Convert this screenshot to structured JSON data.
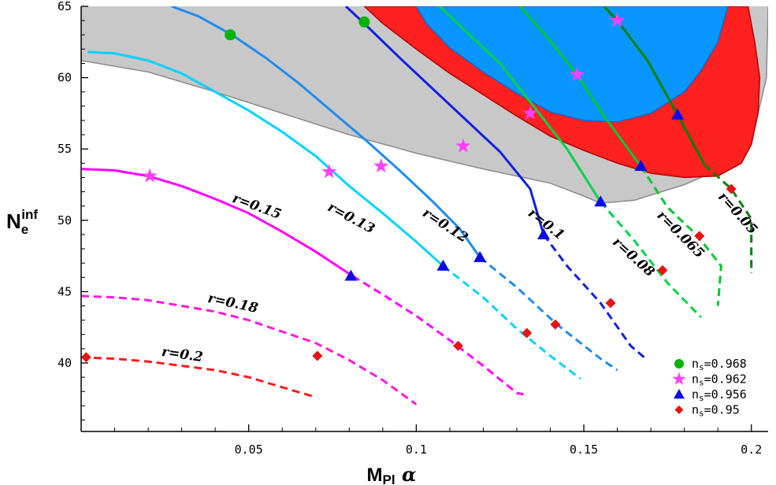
{
  "chart_data": {
    "type": "line",
    "xlabel": "M_Pl α",
    "xlabel_main": "M",
    "xlabel_sub": "Pl",
    "xlabel_greek": "α",
    "ylabel": "N_e^inf",
    "ylabel_main": "N",
    "ylabel_sub": "e",
    "ylabel_sup": "inf",
    "xlim": [
      0.0,
      0.205
    ],
    "ylim": [
      35.2,
      65.0
    ],
    "x_ticks": [
      0.05,
      0.1,
      0.15,
      0.2
    ],
    "x_tick_labels": [
      "0.05",
      "0.1",
      "0.15",
      "0.2"
    ],
    "y_ticks": [
      40,
      45,
      50,
      55,
      60,
      65
    ],
    "y_tick_labels": [
      "40",
      "45",
      "50",
      "55",
      "60",
      "65"
    ],
    "grid": false,
    "legend_position": "bottom-right",
    "regions": [
      {
        "name": "gray region",
        "color": "#c8c8c8",
        "boundary": [
          [
            0.0,
            61.2
          ],
          [
            0.02,
            60.4
          ],
          [
            0.04,
            59.0
          ],
          [
            0.06,
            57.5
          ],
          [
            0.08,
            56.0
          ],
          [
            0.1,
            54.7
          ],
          [
            0.12,
            53.6
          ],
          [
            0.14,
            52.6
          ],
          [
            0.15,
            51.7
          ],
          [
            0.155,
            51.2
          ],
          [
            0.165,
            51.4
          ],
          [
            0.18,
            52.5
          ],
          [
            0.19,
            53.5
          ],
          [
            0.2,
            55.5
          ],
          [
            0.2045,
            60.0
          ],
          [
            0.205,
            65.0
          ]
        ]
      },
      {
        "name": "red region",
        "color": "#ff2020",
        "boundary": [
          [
            0.0845,
            65.0
          ],
          [
            0.09,
            63.8
          ],
          [
            0.1,
            62.0
          ],
          [
            0.11,
            60.3
          ],
          [
            0.12,
            58.8
          ],
          [
            0.13,
            57.3
          ],
          [
            0.14,
            55.9
          ],
          [
            0.15,
            54.9
          ],
          [
            0.16,
            54.0
          ],
          [
            0.17,
            53.3
          ],
          [
            0.18,
            53.0
          ],
          [
            0.19,
            53.1
          ],
          [
            0.197,
            54.0
          ],
          [
            0.2,
            55.3
          ],
          [
            0.202,
            57.5
          ],
          [
            0.2025,
            60.0
          ],
          [
            0.201,
            62.5
          ],
          [
            0.199,
            65.0
          ]
        ]
      },
      {
        "name": "blue region",
        "color": "#0a96ff",
        "boundary": [
          [
            0.1,
            65.0
          ],
          [
            0.103,
            63.8
          ],
          [
            0.11,
            62.1
          ],
          [
            0.12,
            60.4
          ],
          [
            0.13,
            58.9
          ],
          [
            0.14,
            57.6
          ],
          [
            0.15,
            57.0
          ],
          [
            0.16,
            56.9
          ],
          [
            0.17,
            57.5
          ],
          [
            0.18,
            59.0
          ],
          [
            0.185,
            60.5
          ],
          [
            0.19,
            62.5
          ],
          [
            0.193,
            65.0
          ]
        ]
      }
    ],
    "series": [
      {
        "label": "r=0.2",
        "color": "#ff1a1a",
        "solid": [],
        "dashed": [
          [
            0.0,
            40.4
          ],
          [
            0.01,
            40.3
          ],
          [
            0.02,
            40.1
          ],
          [
            0.03,
            39.8
          ],
          [
            0.04,
            39.5
          ],
          [
            0.05,
            39.0
          ],
          [
            0.06,
            38.3
          ],
          [
            0.07,
            37.6
          ]
        ],
        "label_at": [
          0.03,
          40.3
        ],
        "label_rotation": 8
      },
      {
        "label": "r=0.18",
        "color": "#ff1ad9",
        "solid": [],
        "dashed": [
          [
            0.0,
            44.7
          ],
          [
            0.01,
            44.6
          ],
          [
            0.02,
            44.4
          ],
          [
            0.03,
            44.0
          ],
          [
            0.04,
            43.6
          ],
          [
            0.05,
            43.0
          ],
          [
            0.06,
            42.2
          ],
          [
            0.07,
            41.4
          ],
          [
            0.08,
            40.2
          ],
          [
            0.09,
            38.8
          ],
          [
            0.1,
            37.1
          ]
        ],
        "label_at": [
          0.045,
          43.9
        ],
        "label_rotation": 12
      },
      {
        "label": "r=0.15",
        "color": "#ff00ff",
        "solid": [
          [
            0.0,
            53.6
          ],
          [
            0.01,
            53.5
          ],
          [
            0.02,
            53.1
          ],
          [
            0.03,
            52.4
          ],
          [
            0.04,
            51.5
          ],
          [
            0.05,
            50.5
          ],
          [
            0.06,
            49.2
          ],
          [
            0.07,
            47.8
          ],
          [
            0.081,
            46.1
          ]
        ],
        "dashed": [
          [
            0.081,
            46.1
          ],
          [
            0.09,
            44.8
          ],
          [
            0.1,
            43.3
          ],
          [
            0.11,
            41.6
          ],
          [
            0.12,
            39.8
          ],
          [
            0.13,
            37.9
          ],
          [
            0.132,
            37.8
          ]
        ],
        "label_at": [
          0.052,
          50.7
        ],
        "label_rotation": 20
      },
      {
        "label": "r=0.13",
        "color": "#00d2ff",
        "solid": [
          [
            0.002,
            61.8
          ],
          [
            0.01,
            61.7
          ],
          [
            0.02,
            61.2
          ],
          [
            0.03,
            60.3
          ],
          [
            0.04,
            59.0
          ],
          [
            0.05,
            57.7
          ],
          [
            0.06,
            56.2
          ],
          [
            0.07,
            54.5
          ],
          [
            0.08,
            52.4
          ],
          [
            0.09,
            50.5
          ],
          [
            0.1,
            48.5
          ],
          [
            0.108,
            46.8
          ]
        ],
        "dashed": [
          [
            0.108,
            46.8
          ],
          [
            0.12,
            44.6
          ],
          [
            0.13,
            42.4
          ],
          [
            0.14,
            40.5
          ],
          [
            0.149,
            38.9
          ]
        ],
        "label_at": [
          0.08,
          49.9
        ],
        "label_rotation": 28
      },
      {
        "label": "r=0.12",
        "color": "#1e8cf0",
        "solid": [
          [
            0.027,
            65.0
          ],
          [
            0.035,
            64.3
          ],
          [
            0.045,
            63.0
          ],
          [
            0.055,
            61.4
          ],
          [
            0.065,
            59.6
          ],
          [
            0.075,
            57.6
          ],
          [
            0.085,
            55.6
          ],
          [
            0.095,
            53.5
          ],
          [
            0.105,
            51.3
          ],
          [
            0.113,
            49.4
          ],
          [
            0.119,
            47.4
          ]
        ],
        "dashed": [
          [
            0.119,
            47.4
          ],
          [
            0.13,
            45.3
          ],
          [
            0.142,
            42.7
          ],
          [
            0.155,
            40.3
          ],
          [
            0.16,
            39.5
          ]
        ],
        "label_at": [
          0.108,
          49.4
        ],
        "label_rotation": 33
      },
      {
        "label": "r=0.1",
        "color": "#1020e0",
        "solid": [
          [
            0.079,
            65.0
          ],
          [
            0.084,
            63.9
          ],
          [
            0.095,
            61.4
          ],
          [
            0.105,
            59.2
          ],
          [
            0.115,
            57.0
          ],
          [
            0.125,
            54.8
          ],
          [
            0.134,
            52.2
          ],
          [
            0.138,
            49.0
          ]
        ],
        "dashed": [
          [
            0.138,
            49.0
          ],
          [
            0.145,
            46.8
          ],
          [
            0.155,
            44.2
          ],
          [
            0.164,
            41.2
          ],
          [
            0.169,
            40.2
          ]
        ],
        "label_at": [
          0.138,
          49.5
        ],
        "label_rotation": 38
      },
      {
        "label": "r=0.08",
        "color": "#00d24a",
        "solid": [
          [
            0.107,
            65.0
          ],
          [
            0.115,
            63.2
          ],
          [
            0.125,
            61.0
          ],
          [
            0.135,
            58.0
          ],
          [
            0.145,
            55.0
          ],
          [
            0.155,
            51.3
          ]
        ],
        "dashed": [
          [
            0.155,
            51.3
          ],
          [
            0.165,
            48.6
          ],
          [
            0.175,
            45.6
          ],
          [
            0.185,
            43.2
          ]
        ],
        "label_at": [
          0.164,
          47.2
        ],
        "label_rotation": 42
      },
      {
        "label": "r=0.065",
        "color": "#00c832",
        "solid": [
          [
            0.131,
            65.0
          ],
          [
            0.14,
            62.6
          ],
          [
            0.148,
            60.2
          ],
          [
            0.157,
            57.0
          ],
          [
            0.167,
            53.8
          ]
        ],
        "dashed": [
          [
            0.167,
            53.8
          ],
          [
            0.175,
            50.9
          ],
          [
            0.184,
            48.9
          ],
          [
            0.191,
            46.8
          ],
          [
            0.19,
            44.0
          ]
        ],
        "label_at": [
          0.178,
          48.8
        ],
        "label_rotation": 45
      },
      {
        "label": "r=0.05",
        "color": "#008000",
        "solid": [
          [
            0.156,
            65.0
          ],
          [
            0.16,
            64.0
          ],
          [
            0.169,
            61.2
          ],
          [
            0.178,
            57.4
          ],
          [
            0.186,
            53.9
          ]
        ],
        "dashed": [
          [
            0.186,
            53.9
          ],
          [
            0.194,
            52.2
          ],
          [
            0.2,
            50.1
          ],
          [
            0.2,
            46.3
          ]
        ],
        "label_at": [
          0.195,
          50.3
        ],
        "label_rotation": 48
      }
    ],
    "markers": [
      {
        "shape": "circle",
        "color": "#00b400",
        "legend": "ns=0.968",
        "points": [
          [
            0.0445,
            63.0
          ],
          [
            0.0845,
            63.9
          ]
        ]
      },
      {
        "shape": "star",
        "color": "#ff40ff",
        "legend": "ns=0.962",
        "points": [
          [
            0.0205,
            53.1
          ],
          [
            0.074,
            53.4
          ],
          [
            0.0895,
            53.8
          ],
          [
            0.114,
            55.2
          ],
          [
            0.134,
            57.5
          ],
          [
            0.148,
            60.2
          ],
          [
            0.16,
            64.0
          ]
        ]
      },
      {
        "shape": "triangle",
        "color": "#0a0ae6",
        "legend": "ns=0.956",
        "points": [
          [
            0.0805,
            46.1
          ],
          [
            0.108,
            46.8
          ],
          [
            0.119,
            47.4
          ],
          [
            0.138,
            49.0
          ],
          [
            0.155,
            51.3
          ],
          [
            0.167,
            53.8
          ],
          [
            0.178,
            57.4
          ]
        ]
      },
      {
        "shape": "diamond",
        "color": "#e61414",
        "legend": "ns=0.95",
        "points": [
          [
            0.0015,
            40.4
          ],
          [
            0.0705,
            40.5
          ],
          [
            0.1125,
            41.2
          ],
          [
            0.133,
            42.1
          ],
          [
            0.1415,
            42.7
          ],
          [
            0.158,
            44.2
          ],
          [
            0.1735,
            46.5
          ],
          [
            0.1845,
            48.9
          ],
          [
            0.194,
            52.2
          ]
        ]
      }
    ],
    "legend": [
      {
        "shape": "circle",
        "color": "#00b400",
        "text": "n",
        "sub": "s",
        "value": "=0.968"
      },
      {
        "shape": "star",
        "color": "#ff40ff",
        "text": "n",
        "sub": "s",
        "value": "=0.962"
      },
      {
        "shape": "triangle",
        "color": "#0a0ae6",
        "text": "n",
        "sub": "s",
        "value": "=0.956"
      },
      {
        "shape": "diamond",
        "color": "#e61414",
        "text": "n",
        "sub": "s",
        "value": "=0.95"
      }
    ]
  }
}
